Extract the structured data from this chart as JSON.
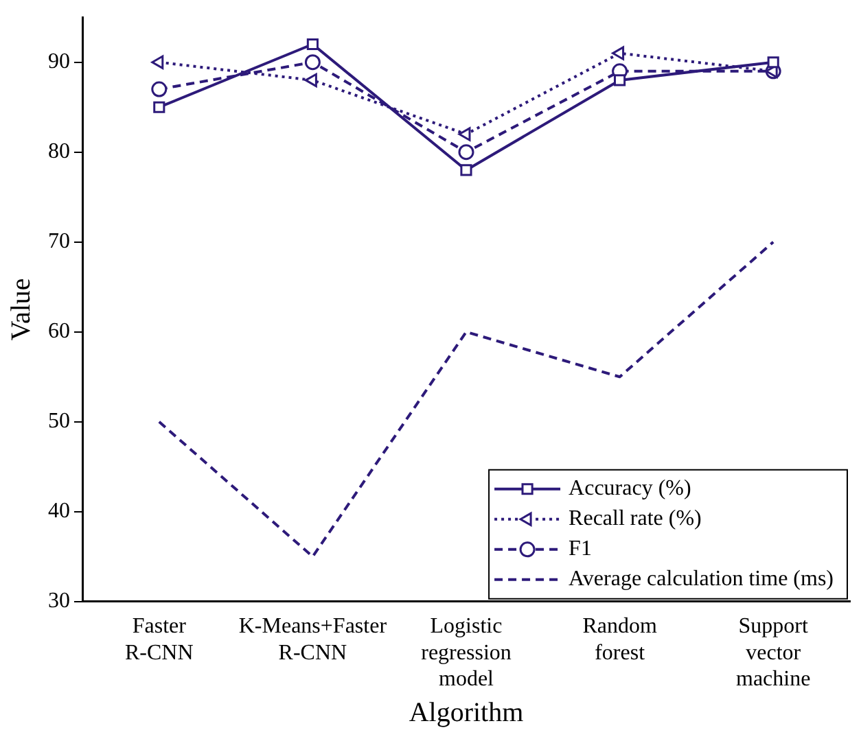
{
  "chart_data": {
    "type": "line",
    "xlabel": "Algorithm",
    "ylabel": "Value",
    "categories": [
      "Faster R-CNN",
      "K-Means+Faster R-CNN",
      "Logistic regression model",
      "Random forest",
      "Support vector machine"
    ],
    "series": [
      {
        "name": "Accuracy (%)",
        "color": "#2d1a7a",
        "marker": "square",
        "line_style": "solid",
        "values": [
          85,
          92,
          78,
          88,
          90
        ]
      },
      {
        "name": "Recall rate (%)",
        "color": "#2d1a7a",
        "marker": "triangle",
        "line_style": "dotted",
        "values": [
          90,
          88,
          82,
          91,
          89
        ]
      },
      {
        "name": "F1",
        "color": "#2d1a7a",
        "marker": "circle",
        "line_style": "dashed",
        "values": [
          87,
          90,
          80,
          89,
          89
        ]
      },
      {
        "name": "Average calculation time (ms)",
        "color": "#2d1a7a",
        "marker": "none",
        "line_style": "dashed",
        "values": [
          50,
          35,
          60,
          55,
          70
        ]
      }
    ],
    "ylim": [
      30,
      95
    ],
    "yticks": [
      30,
      40,
      50,
      60,
      70,
      80,
      90
    ],
    "grid": false,
    "legend": "bottom right"
  }
}
